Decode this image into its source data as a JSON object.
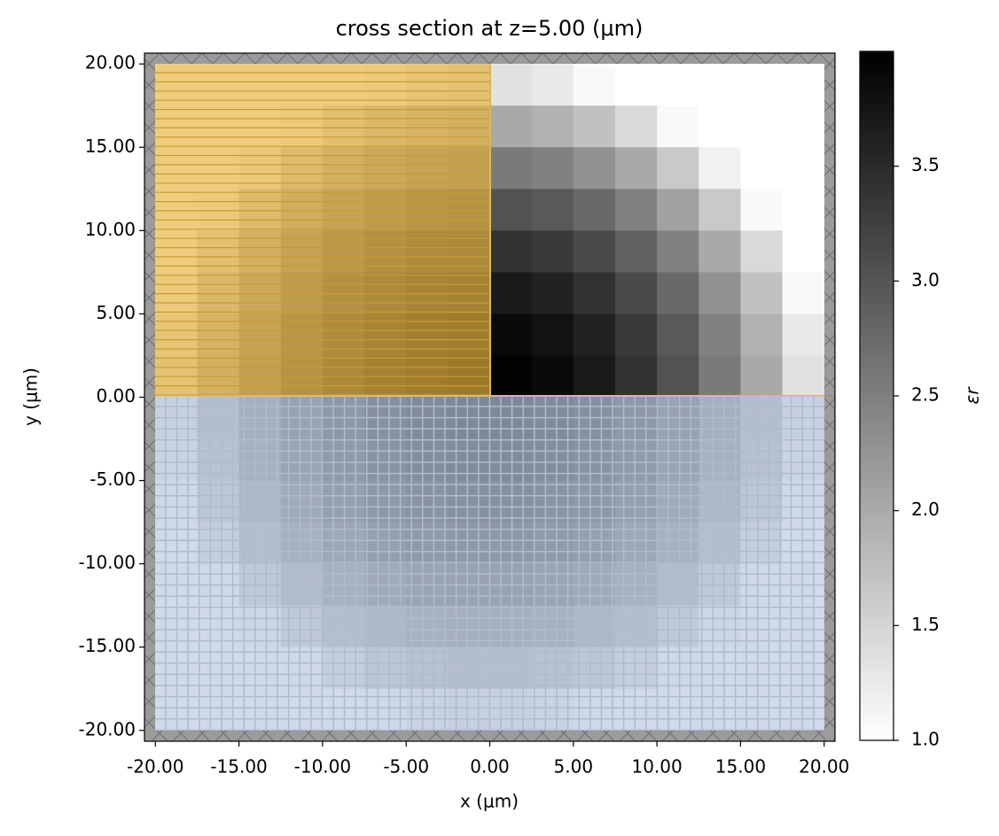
{
  "chart_data": {
    "type": "heatmap",
    "title": "cross section at z=5.00 (μm)",
    "x_label": "x (μm)",
    "y_label": "y (μm)",
    "colorbar_label": "εr",
    "cmap": "gray_r",
    "xlim": [
      -20.65,
      20.65
    ],
    "ylim": [
      -20.65,
      20.65
    ],
    "clim": [
      1,
      4
    ],
    "xticks": [
      {
        "value": -20,
        "label": "-20.00"
      },
      {
        "value": -15,
        "label": "-15.00"
      },
      {
        "value": -10,
        "label": "-10.00"
      },
      {
        "value": -5,
        "label": "-5.00"
      },
      {
        "value": 0,
        "label": "0.00"
      },
      {
        "value": 5,
        "label": "5.00"
      },
      {
        "value": 10,
        "label": "10.00"
      },
      {
        "value": 15,
        "label": "15.00"
      },
      {
        "value": 20,
        "label": "20.00"
      }
    ],
    "yticks": [
      {
        "value": 20,
        "label": "20.00"
      },
      {
        "value": 15,
        "label": "15.00"
      },
      {
        "value": 10,
        "label": "10.00"
      },
      {
        "value": 5,
        "label": "5.00"
      },
      {
        "value": 0,
        "label": "0.00"
      },
      {
        "value": -5,
        "label": "-5.00"
      },
      {
        "value": -10,
        "label": "-10.00"
      },
      {
        "value": -15,
        "label": "-15.00"
      },
      {
        "value": -20,
        "label": "-20.00"
      }
    ],
    "cticks": [
      {
        "value": 1,
        "label": "1.0"
      },
      1.5,
      {
        "value": 2,
        "label": "2.0"
      },
      2.5,
      {
        "value": 3,
        "label": "3.0"
      },
      3.5
    ],
    "x": [
      -18.75,
      -16.25,
      -13.75,
      -11.25,
      -8.75,
      -6.25,
      -3.75,
      -1.25,
      1.25,
      3.75,
      6.25,
      8.75,
      11.25,
      13.75,
      16.25,
      18.75
    ],
    "y": [
      18.75,
      16.25,
      13.75,
      11.25,
      8.75,
      6.25,
      3.75,
      1.25,
      -1.25,
      -3.75,
      -6.25,
      -8.75,
      -11.25,
      -13.75,
      -16.25,
      -18.75
    ],
    "z": [
      [
        1,
        1,
        1,
        1,
        1,
        1.07,
        1.26,
        1.35,
        1.35,
        1.26,
        1.07,
        1,
        1,
        1,
        1,
        1
      ],
      [
        1,
        1,
        1,
        1.07,
        1.45,
        1.73,
        1.91,
        2.01,
        2.01,
        1.91,
        1.73,
        1.45,
        1.07,
        1,
        1,
        1
      ],
      [
        1,
        1,
        1.16,
        1.63,
        2.01,
        2.29,
        2.48,
        2.57,
        2.57,
        2.48,
        2.29,
        2.01,
        1.63,
        1.16,
        1,
        1
      ],
      [
        1,
        1.07,
        1.63,
        2.1,
        2.48,
        2.76,
        2.95,
        3.04,
        3.04,
        2.95,
        2.76,
        2.48,
        2.1,
        1.63,
        1.07,
        1
      ],
      [
        1,
        1.45,
        2.01,
        2.48,
        2.85,
        3.13,
        3.32,
        3.41,
        3.41,
        3.32,
        3.13,
        2.85,
        2.48,
        2.01,
        1.45,
        1
      ],
      [
        1.07,
        1.73,
        2.29,
        2.76,
        3.13,
        3.41,
        3.6,
        3.7,
        3.7,
        3.6,
        3.41,
        3.13,
        2.76,
        2.29,
        1.73,
        1.07
      ],
      [
        1.26,
        1.91,
        2.48,
        2.95,
        3.32,
        3.6,
        3.79,
        3.88,
        3.88,
        3.79,
        3.6,
        3.32,
        2.95,
        2.48,
        1.91,
        1.26
      ],
      [
        1.35,
        2.01,
        2.57,
        3.04,
        3.41,
        3.7,
        3.88,
        3.98,
        3.98,
        3.88,
        3.7,
        3.41,
        3.04,
        2.57,
        2.01,
        1.35
      ],
      [
        1.35,
        2.01,
        2.57,
        3.04,
        3.41,
        3.7,
        3.88,
        3.98,
        3.98,
        3.88,
        3.7,
        3.41,
        3.04,
        2.57,
        2.01,
        1.35
      ],
      [
        1.26,
        1.91,
        2.48,
        2.95,
        3.32,
        3.6,
        3.79,
        3.88,
        3.88,
        3.79,
        3.6,
        3.32,
        2.95,
        2.48,
        1.91,
        1.26
      ],
      [
        1.07,
        1.73,
        2.29,
        2.76,
        3.13,
        3.41,
        3.6,
        3.7,
        3.7,
        3.6,
        3.41,
        3.13,
        2.76,
        2.29,
        1.73,
        1.07
      ],
      [
        1,
        1.45,
        2.01,
        2.48,
        2.85,
        3.13,
        3.32,
        3.41,
        3.41,
        3.32,
        3.13,
        2.85,
        2.48,
        2.01,
        1.45,
        1
      ],
      [
        1,
        1.07,
        1.63,
        2.1,
        2.48,
        2.76,
        2.95,
        3.04,
        3.04,
        2.95,
        2.76,
        2.48,
        2.1,
        1.63,
        1.07,
        1
      ],
      [
        1,
        1,
        1.16,
        1.63,
        2.01,
        2.29,
        2.48,
        2.57,
        2.57,
        2.48,
        2.29,
        2.01,
        1.63,
        1.16,
        1,
        1
      ],
      [
        1,
        1,
        1,
        1.07,
        1.45,
        1.73,
        1.91,
        2.01,
        2.01,
        1.91,
        1.73,
        1.45,
        1.07,
        1,
        1,
        1
      ],
      [
        1,
        1,
        1,
        1,
        1,
        1.07,
        1.26,
        1.35,
        1.35,
        1.26,
        1.07,
        1,
        1,
        1,
        1,
        1
      ]
    ]
  }
}
